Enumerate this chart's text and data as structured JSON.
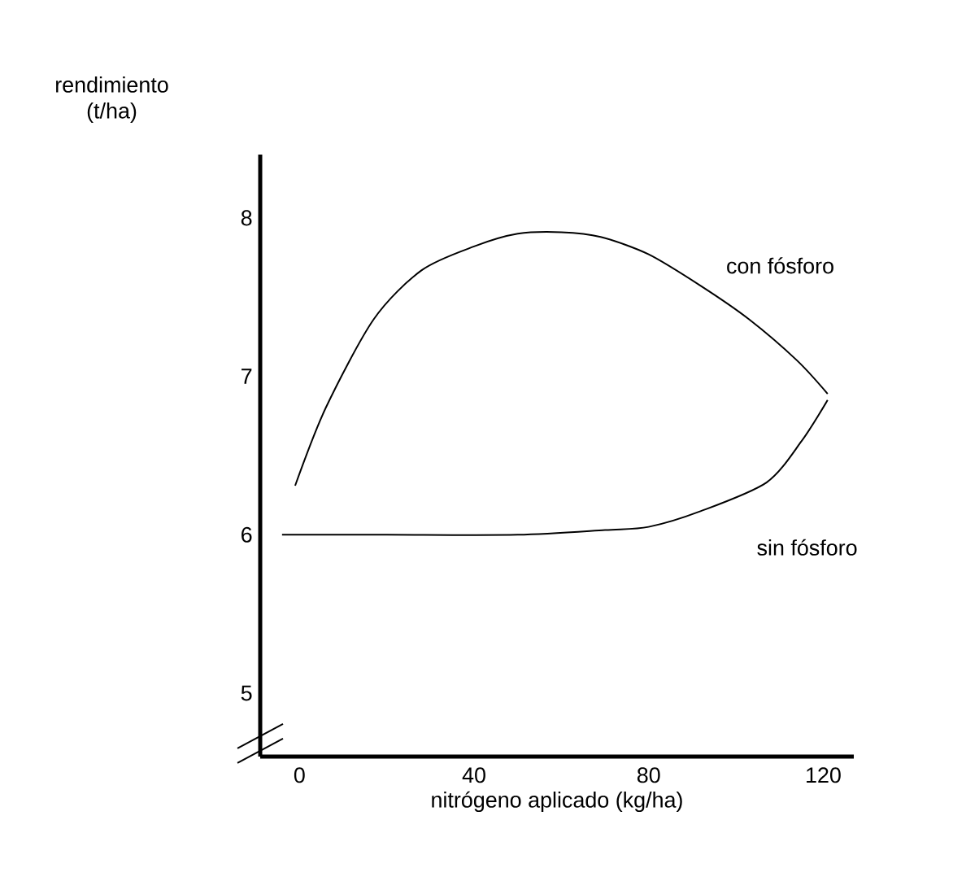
{
  "chart_data": {
    "type": "line",
    "xlabel": "nitrógeno aplicado (kg/ha)",
    "ylabel": "rendimiento (t/ha)",
    "xlim": [
      -9,
      127
    ],
    "ylim": [
      4.6,
      8.4
    ],
    "xticks": [
      0,
      40,
      80,
      120
    ],
    "yticks": [
      5,
      6,
      7,
      8
    ],
    "grid": false,
    "marker": "none",
    "series": [
      {
        "name": "con fósforo",
        "color": "#000000",
        "x": [
          -1,
          6,
          17,
          28,
          40,
          50,
          60,
          69,
          80,
          92,
          103,
          114,
          121
        ],
        "values": [
          6.31,
          6.8,
          7.36,
          7.67,
          7.82,
          7.9,
          7.91,
          7.88,
          7.77,
          7.57,
          7.36,
          7.1,
          6.89
        ]
      },
      {
        "name": "sin fósforo",
        "color": "#000000",
        "x": [
          -4,
          20,
          50,
          70,
          80,
          92,
          107,
          115,
          121
        ],
        "values": [
          6.0,
          6.0,
          6.0,
          6.03,
          6.05,
          6.15,
          6.33,
          6.59,
          6.85
        ]
      }
    ]
  }
}
